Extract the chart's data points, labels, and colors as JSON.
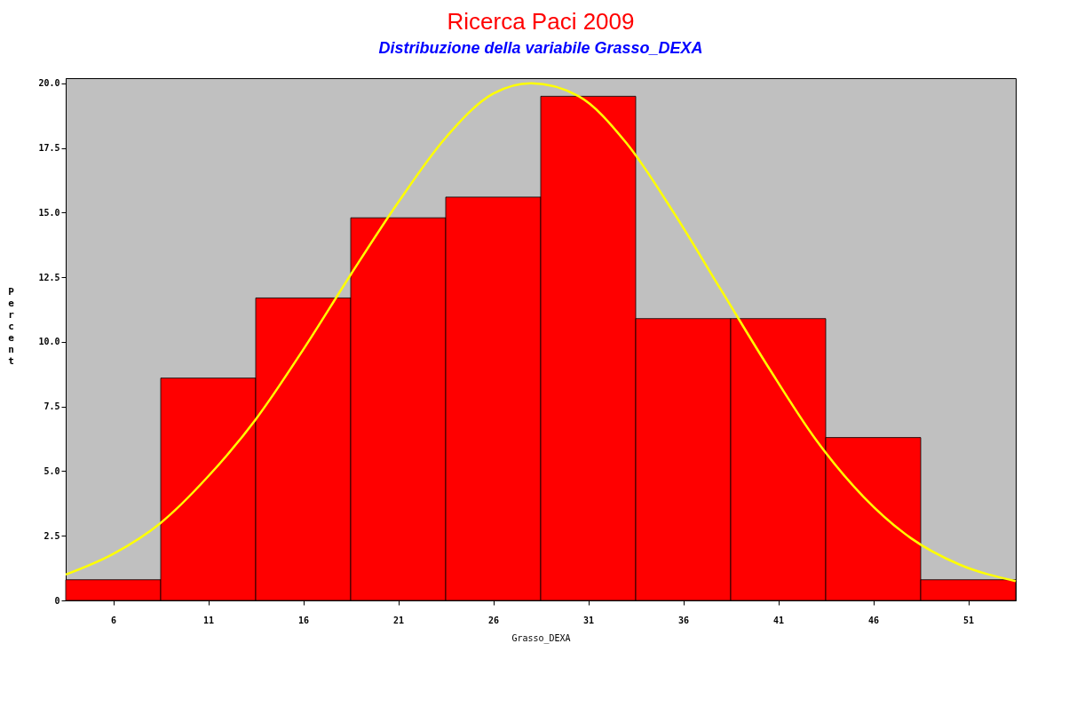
{
  "chart_data": {
    "type": "histogram",
    "title": "Ricerca Paci 2009",
    "subtitle": "Distribuzione della variabile Grasso_DEXA",
    "xlabel": "Grasso_DEXA",
    "ylabel": "Percent",
    "bins": [
      3.5,
      8.5,
      13.5,
      18.5,
      23.5,
      28.5,
      33.5,
      38.5,
      43.5,
      48.5,
      53.5
    ],
    "values": [
      0.8,
      8.6,
      11.7,
      14.8,
      15.6,
      19.5,
      10.9,
      10.9,
      6.3,
      0.8
    ],
    "color": "#ff0000",
    "series": [
      {
        "type": "line",
        "color": "#ffff00",
        "x": [
          3.5,
          6,
          8.5,
          11,
          13.5,
          16,
          18.5,
          21,
          23.5,
          26,
          28,
          30.5,
          33,
          35.5,
          38,
          40.5,
          43,
          45.5,
          48,
          50.5,
          53.5
        ],
        "values": [
          1.0,
          1.8,
          3.0,
          4.8,
          7.0,
          9.7,
          12.6,
          15.4,
          17.9,
          19.6,
          20.0,
          19.5,
          17.7,
          15.0,
          12.0,
          9.0,
          6.2,
          4.0,
          2.4,
          1.4,
          0.75
        ]
      }
    ],
    "xlim": [
      3.5,
      53.5
    ],
    "xticks": [
      6,
      11,
      16,
      21,
      26,
      31,
      36,
      41,
      46,
      51
    ],
    "ylim": [
      0,
      20.2
    ],
    "yticks": [
      0,
      2.5,
      {
        "value": 5,
        "label": "5.0"
      },
      7.5,
      {
        "value": 10,
        "label": "10.0"
      },
      12.5,
      {
        "value": 15,
        "label": "15.0"
      },
      17.5,
      {
        "value": 20,
        "label": "20.0"
      }
    ],
    "grid": false
  }
}
